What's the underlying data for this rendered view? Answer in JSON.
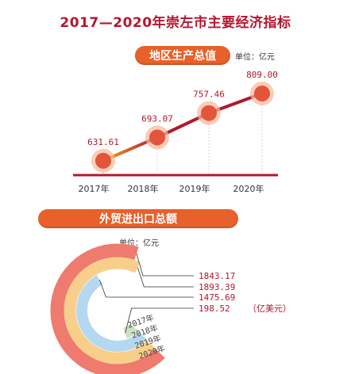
{
  "title": "2017—2020年崇左市主要经济指标",
  "chart_data": [
    {
      "type": "line",
      "title": "地区生产总值",
      "unit": "单位：亿元",
      "categories": [
        "2017年",
        "2018年",
        "2019年",
        "2020年"
      ],
      "values": [
        631.61,
        693.07,
        757.46,
        809.0
      ],
      "value_labels": [
        "631.61",
        "693.07",
        "757.46",
        "809.00"
      ],
      "ylim": [
        600,
        830
      ],
      "colors": {
        "line": "#b0192c",
        "line_start": "#f0a020",
        "marker": "#e2553a",
        "halo": "#f6b89a",
        "baseline": "#b0192c"
      }
    },
    {
      "type": "pie",
      "style": "concentric-arcs",
      "title": "外贸进出口总额",
      "unit": "单位：亿元",
      "categories": [
        "2017年",
        "2018年",
        "2019年",
        "2020年"
      ],
      "values": [
        198.52,
        1475.69,
        1893.39,
        1843.17
      ],
      "value_labels": [
        "198.52",
        "1475.69",
        "1893.39",
        "1843.17"
      ],
      "unit_note": "（亿美元）",
      "colors": {
        "2017": "#c9e3c0",
        "2018": "#b4d8ef",
        "2019": "#f7cf8a",
        "2020": "#ef7a6e"
      }
    }
  ]
}
